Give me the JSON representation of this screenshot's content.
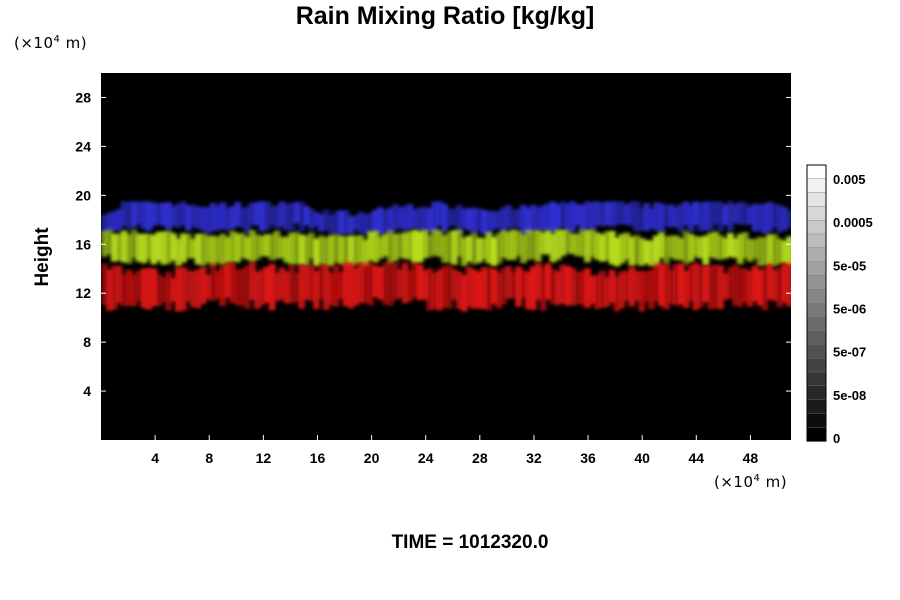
{
  "chart_data": {
    "type": "heatmap",
    "title": "Rain Mixing Ratio [kg/kg]",
    "ylabel": "Height",
    "y_unit": "(×10⁴ m)",
    "x_unit": "(×10⁴ m)",
    "time_label": "TIME = 1012320.0",
    "xlim": [
      0,
      51
    ],
    "ylim": [
      0,
      30
    ],
    "x_ticks": [
      "4",
      "8",
      "12",
      "16",
      "20",
      "24",
      "28",
      "32",
      "36",
      "40",
      "44",
      "48"
    ],
    "y_ticks": [
      "4",
      "8",
      "12",
      "16",
      "20",
      "24",
      "28"
    ],
    "colorbar": {
      "labels": [
        "0.005",
        "0.0005",
        "5e-05",
        "5e-06",
        "5e-07",
        "5e-08",
        "0"
      ],
      "levels": 20
    },
    "background_color": "#000000",
    "layers": [
      {
        "color": "#2f2fd0",
        "y_range": [
          16.8,
          19.5
        ]
      },
      {
        "color": "#b8df1c",
        "y_range": [
          14.2,
          17.2
        ]
      },
      {
        "color": "#e01616",
        "y_range": [
          10.5,
          14.5
        ]
      }
    ]
  }
}
